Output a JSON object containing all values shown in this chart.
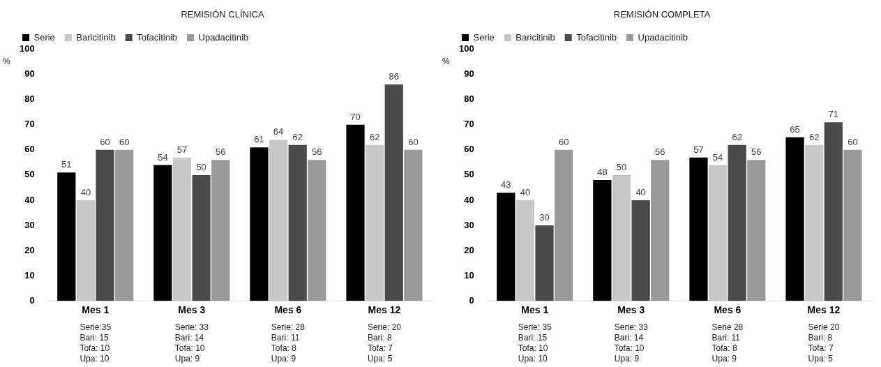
{
  "chart_data": [
    {
      "type": "bar",
      "title": "REMISIÓN CLÍNICA",
      "ylabel": "%",
      "categories": [
        "Mes 1",
        "Mes 3",
        "Mes 6",
        "Mes 12"
      ],
      "series": [
        {
          "name": "Serie",
          "color": "#000000",
          "values": [
            51,
            54,
            61,
            70
          ]
        },
        {
          "name": "Baricitinib",
          "color": "#c8c8c8",
          "values": [
            40,
            57,
            64,
            62
          ]
        },
        {
          "name": "Tofacitinib",
          "color": "#4a4a4a",
          "values": [
            60,
            50,
            62,
            86
          ]
        },
        {
          "name": "Upadacitinib",
          "color": "#9a9a9a",
          "values": [
            60,
            56,
            56,
            60
          ]
        }
      ],
      "ylim": [
        0,
        100
      ],
      "yticks": [
        0,
        10,
        20,
        30,
        40,
        50,
        60,
        70,
        80,
        90,
        100
      ],
      "grid": false,
      "legend": "top left",
      "data_labels": true,
      "annotations": [
        "Serie:35\nBari: 15\nTofa: 10\nUpa: 10",
        "Serie: 33\nBari: 14\nTofa: 10\nUpa: 9",
        "Serie: 28\nBari: 11\nTofa: 8\nUpa: 9",
        "Serie: 20\nBari: 8\nTofa: 7\nUpa: 5"
      ]
    },
    {
      "type": "bar",
      "title": "REMISIÓN COMPLETA",
      "ylabel": "%",
      "categories": [
        "Mes 1",
        "Mes 3",
        "Mes 6",
        "Mes 12"
      ],
      "series": [
        {
          "name": "Serie",
          "color": "#000000",
          "values": [
            43,
            48,
            57,
            65
          ]
        },
        {
          "name": "Baricitinib",
          "color": "#c8c8c8",
          "values": [
            40,
            50,
            54,
            62
          ]
        },
        {
          "name": "Tofacitinib",
          "color": "#4a4a4a",
          "values": [
            30,
            40,
            62,
            71
          ]
        },
        {
          "name": "Upadacitinib",
          "color": "#9a9a9a",
          "values": [
            60,
            56,
            56,
            60
          ]
        }
      ],
      "ylim": [
        0,
        100
      ],
      "yticks": [
        0,
        10,
        20,
        30,
        40,
        50,
        60,
        70,
        80,
        90,
        100
      ],
      "grid": false,
      "legend": "top left",
      "data_labels": true,
      "annotations": [
        "Serie: 35\nBari: 15\nTofa: 10\nUpa: 10",
        "Serie: 33\nBari: 14\nTofa: 10\nUpa: 9",
        "Serie 28\nBari: 11\nTofa: 8\nUpa: 9",
        "Serie 20\nBari: 8\nTofa: 7\nUpa: 5"
      ]
    }
  ]
}
